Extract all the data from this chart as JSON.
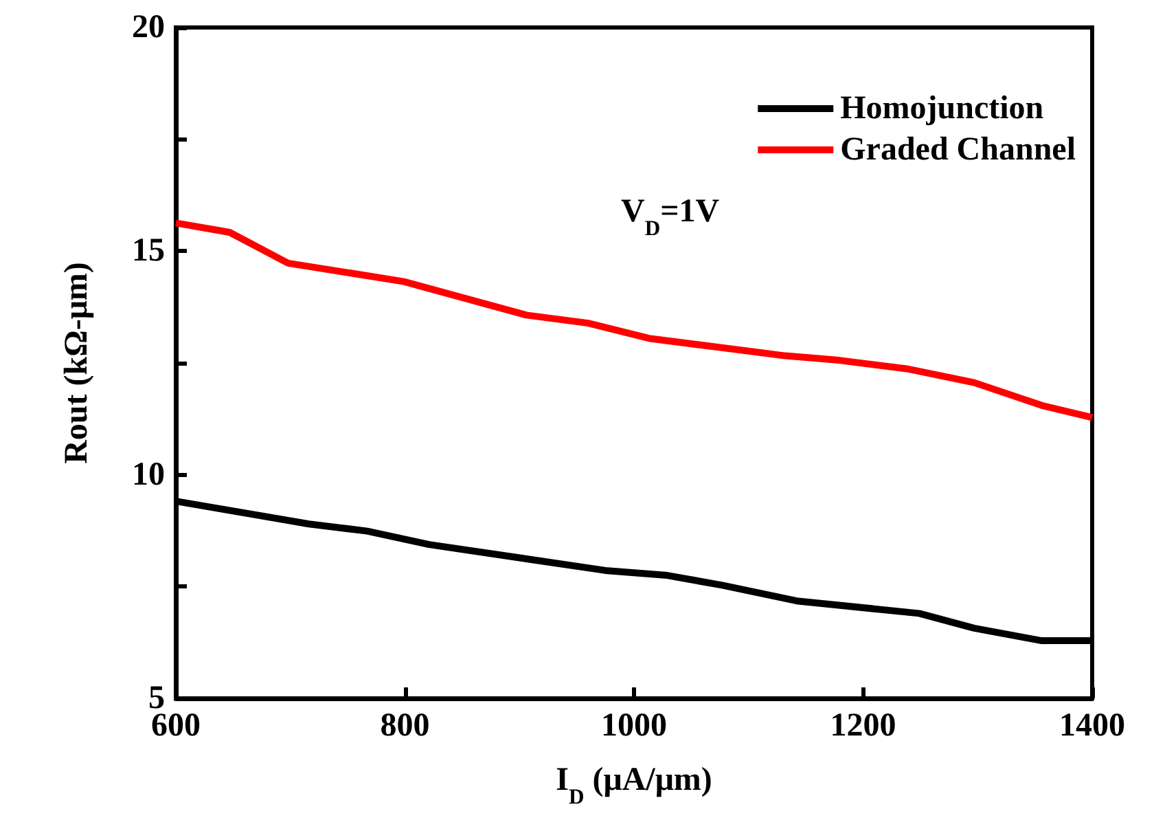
{
  "chart_data": {
    "type": "line",
    "xlabel": "I$_{D}$ (μA/μm)",
    "ylabel": "Rout (kΩ-μm)",
    "annotations": [
      "V$_{D}$=1V"
    ],
    "xlim": [
      600,
      1400
    ],
    "xticks": [
      600,
      800,
      1000,
      1200,
      1400
    ],
    "ylim": [
      5,
      20
    ],
    "yticks": [
      5,
      {
        "value": 7.5,
        "label": null
      },
      10,
      {
        "value": 12.5,
        "label": null
      },
      15,
      {
        "value": 17.5,
        "label": null
      },
      20
    ],
    "grid": false,
    "legend": "top right",
    "marker": "none",
    "line_style": "solid",
    "series": [
      {
        "name": "Homojunction",
        "color": "#000000",
        "x": [
          600,
          716,
          767,
          821,
          975,
          1029,
          1077,
          1142,
          1249,
          1297,
          1356,
          1400
        ],
        "values": [
          9.41,
          8.9,
          8.74,
          8.44,
          7.86,
          7.75,
          7.53,
          7.18,
          6.9,
          6.57,
          6.29,
          6.29
        ]
      },
      {
        "name": "Graded Channel",
        "color": "#ff0000",
        "x": [
          600,
          647,
          698,
          799,
          906,
          960,
          1013,
          1132,
          1179,
          1238,
          1297,
          1356,
          1400
        ],
        "values": [
          15.63,
          15.42,
          14.73,
          14.32,
          13.57,
          13.39,
          13.05,
          12.66,
          12.56,
          12.37,
          12.06,
          11.55,
          11.28
        ]
      }
    ]
  }
}
